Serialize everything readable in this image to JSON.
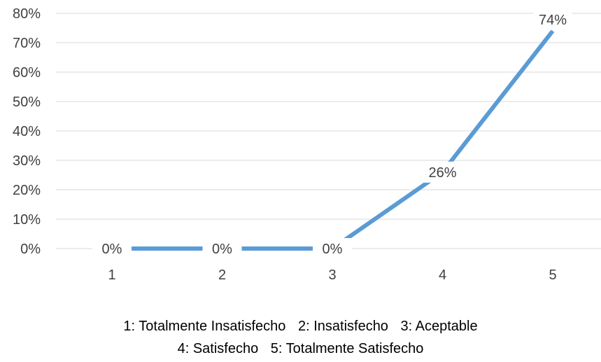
{
  "chart_data": {
    "type": "line",
    "categories": [
      "1",
      "2",
      "3",
      "4",
      "5"
    ],
    "series": [
      {
        "values": [
          0,
          0,
          0,
          26,
          74
        ],
        "data_labels": [
          "0%",
          "0%",
          "0%",
          "26%",
          "74%"
        ],
        "color": "#5B9BD5"
      }
    ],
    "y_ticks": [
      "0%",
      "10%",
      "20%",
      "30%",
      "40%",
      "50%",
      "60%",
      "70%",
      "80%"
    ],
    "ylim": [
      0,
      80
    ],
    "y_unit": "%",
    "grid": true,
    "legend_note": {
      "line1": [
        "1: Totalmente Insatisfecho",
        "2: Insatisfecho",
        "3: Aceptable"
      ],
      "line2": [
        "4: Satisfecho",
        "5: Totalmente Satisfecho"
      ]
    }
  },
  "colors": {
    "series": "#5B9BD5",
    "grid": "#D9D9D9",
    "text": "#404040"
  }
}
